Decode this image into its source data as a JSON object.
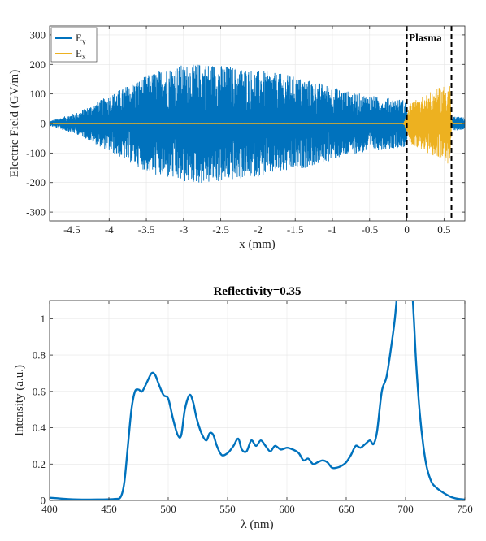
{
  "chart_data": [
    {
      "type": "line",
      "title": "",
      "xlabel": "x (mm)",
      "ylabel": "Electric Field   (GV/m)",
      "xlim": [
        -4.8,
        0.78
      ],
      "ylim": [
        -330,
        330
      ],
      "xticks": [
        -4.5,
        -4,
        -3.5,
        -3,
        -2.5,
        -2,
        -1.5,
        -1,
        -0.5,
        0,
        0.5
      ],
      "xtick_labels": [
        "-4.5",
        "-4",
        "-3.5",
        "-3",
        "-2.5",
        "-2",
        "-1.5",
        "-1",
        "-0.5",
        "0",
        "0.5"
      ],
      "yticks": [
        -300,
        -200,
        -100,
        0,
        100,
        200,
        300
      ],
      "ytick_labels": [
        "-300",
        "-200",
        "-100",
        "0",
        "100",
        "200",
        "300"
      ],
      "grid": true,
      "legend_position": "top-left",
      "series": [
        {
          "name": "E",
          "subscript": "y",
          "color": "#0072BD",
          "style": "oscillation",
          "envelope_x": [
            -4.8,
            -4.4,
            -4.0,
            -3.6,
            -3.3,
            -3.0,
            -2.7,
            -2.4,
            -2.0,
            -1.6,
            -1.2,
            -0.8,
            -0.5,
            -0.2,
            0.0,
            0.02,
            0.6,
            0.62,
            0.78
          ],
          "envelope_amp": [
            8,
            40,
            95,
            150,
            185,
            200,
            205,
            195,
            180,
            165,
            140,
            110,
            95,
            85,
            80,
            3,
            3,
            25,
            20
          ]
        },
        {
          "name": "E",
          "subscript": "x",
          "color": "#EDB120",
          "style": "oscillation",
          "envelope_x": [
            -4.8,
            -0.05,
            0.0,
            0.05,
            0.2,
            0.35,
            0.5,
            0.58,
            0.6,
            0.62,
            0.78
          ],
          "envelope_amp": [
            0,
            0,
            30,
            70,
            90,
            110,
            130,
            140,
            20,
            0,
            0
          ]
        }
      ],
      "annotations": [
        {
          "text": "Plasma",
          "x": 0.29,
          "y": 290
        }
      ],
      "vlines": [
        {
          "x": 0,
          "style": "dashed",
          "color": "#000000"
        },
        {
          "x": 0.6,
          "style": "dashed",
          "color": "#000000"
        }
      ]
    },
    {
      "type": "line",
      "title": "Reflectivity=0.35",
      "xlabel": "λ (nm)",
      "ylabel": "Intensity  (a.u.)",
      "xlim": [
        400,
        750
      ],
      "ylim": [
        0,
        1.1
      ],
      "xticks": [
        400,
        450,
        500,
        550,
        600,
        650,
        700,
        750
      ],
      "xtick_labels": [
        "400",
        "450",
        "500",
        "550",
        "600",
        "650",
        "700",
        "750"
      ],
      "yticks": [
        0,
        0.2,
        0.4,
        0.6,
        0.8,
        1
      ],
      "ytick_labels": [
        "0",
        "0.2",
        "0.4",
        "0.6",
        "0.8",
        "1"
      ],
      "grid": true,
      "series": [
        {
          "name": "",
          "color": "#0072BD",
          "x": [
            400,
            410,
            420,
            440,
            455,
            460,
            463,
            466,
            469,
            472,
            475,
            478,
            482,
            486,
            489,
            492,
            496,
            500,
            504,
            508,
            511,
            514,
            518,
            521,
            524,
            528,
            532,
            535,
            538,
            541,
            545,
            550,
            555,
            559,
            562,
            566,
            570,
            574,
            578,
            582,
            586,
            590,
            595,
            600,
            605,
            610,
            614,
            618,
            622,
            626,
            630,
            634,
            638,
            642,
            646,
            650,
            654,
            658,
            662,
            666,
            670,
            673,
            676,
            680,
            684,
            688,
            691,
            694,
            697,
            700,
            703,
            705,
            707,
            709,
            712,
            715,
            718,
            722,
            726,
            730,
            735,
            740,
            745,
            750
          ],
          "y": [
            0.015,
            0.01,
            0.006,
            0.005,
            0.008,
            0.02,
            0.1,
            0.3,
            0.5,
            0.6,
            0.61,
            0.6,
            0.65,
            0.7,
            0.69,
            0.64,
            0.58,
            0.56,
            0.45,
            0.36,
            0.36,
            0.5,
            0.58,
            0.54,
            0.45,
            0.37,
            0.33,
            0.37,
            0.36,
            0.3,
            0.25,
            0.26,
            0.3,
            0.34,
            0.28,
            0.27,
            0.33,
            0.3,
            0.33,
            0.3,
            0.27,
            0.3,
            0.28,
            0.29,
            0.28,
            0.26,
            0.22,
            0.23,
            0.2,
            0.21,
            0.22,
            0.21,
            0.18,
            0.18,
            0.19,
            0.21,
            0.25,
            0.3,
            0.29,
            0.31,
            0.33,
            0.31,
            0.38,
            0.6,
            0.68,
            0.85,
            1.0,
            1.2,
            1.25,
            1.2,
            1.15,
            1.2,
            1.0,
            0.75,
            0.48,
            0.3,
            0.18,
            0.1,
            0.07,
            0.05,
            0.03,
            0.015,
            0.008,
            0.005
          ]
        }
      ]
    }
  ]
}
